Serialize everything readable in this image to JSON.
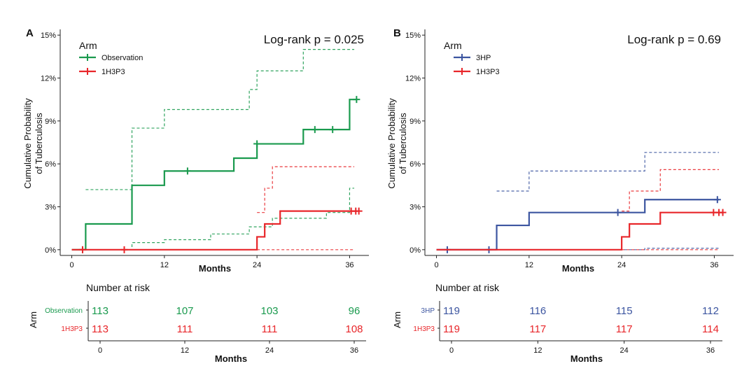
{
  "colors": {
    "observation": "#1a9a4e",
    "treatment": "#e8262a",
    "threehp": "#3c55a0",
    "axis": "#222222",
    "text": "#111111"
  },
  "chart_data": [
    {
      "type": "line",
      "subtype": "step (Kaplan-Meier cumulative incidence)",
      "panel_label": "A",
      "annotation": "Log-rank p = 0.025",
      "xlabel": "Months",
      "ylabel_line1": "Cumulative Probability",
      "ylabel_line2": "of Tuberculosis",
      "xticks": [
        0,
        12,
        24,
        36
      ],
      "xtick_labels": [
        "0",
        "12",
        "24",
        "36"
      ],
      "yticks": [
        0,
        3,
        6,
        9,
        12,
        15
      ],
      "ytick_labels": [
        "0%",
        "3%",
        "6%",
        "9%",
        "12%",
        "15%"
      ],
      "xlim": [
        -1.5,
        38.5
      ],
      "ylim": [
        -0.4,
        15.4
      ],
      "legend_title": "Arm",
      "legend_position": "top-left",
      "series": [
        {
          "name": "Observation",
          "color_key": "observation",
          "steps": [
            [
              0,
              0
            ],
            [
              1.8,
              1.8
            ],
            [
              7.8,
              4.5
            ],
            [
              12,
              5.5
            ],
            [
              21,
              6.4
            ],
            [
              24,
              7.4
            ],
            [
              30,
              8.4
            ],
            [
              36,
              10.5
            ],
            [
              37,
              10.5
            ]
          ],
          "censors": [
            [
              1.4,
              0
            ],
            [
              15,
              5.5
            ],
            [
              24,
              7.4
            ],
            [
              31.5,
              8.4
            ],
            [
              33.8,
              8.4
            ],
            [
              36.9,
              10.5
            ]
          ],
          "ci_lower": [
            [
              1.8,
              0
            ],
            [
              7.8,
              0.5
            ],
            [
              12,
              0.7
            ],
            [
              18,
              1.1
            ],
            [
              23,
              1.6
            ],
            [
              26,
              2.2
            ],
            [
              33,
              2.6
            ],
            [
              36,
              4.3
            ],
            [
              36.6,
              4.3
            ]
          ],
          "ci_upper": [
            [
              1.8,
              4.2
            ],
            [
              7.8,
              8.5
            ],
            [
              12,
              9.8
            ],
            [
              23,
              11.2
            ],
            [
              24,
              12.5
            ],
            [
              30,
              14
            ],
            [
              36.6,
              14
            ]
          ]
        },
        {
          "name": "1H3P3",
          "color_key": "treatment",
          "steps": [
            [
              0,
              0
            ],
            [
              24,
              0.9
            ],
            [
              25,
              1.8
            ],
            [
              27,
              2.7
            ],
            [
              37,
              2.7
            ]
          ],
          "censors": [
            [
              1.4,
              0
            ],
            [
              6.8,
              0
            ],
            [
              36.2,
              2.7
            ],
            [
              36.8,
              2.7
            ],
            [
              37.2,
              2.7
            ]
          ],
          "ci_lower": [
            [
              24,
              0
            ],
            [
              36.6,
              0
            ]
          ],
          "ci_upper": [
            [
              24,
              2.6
            ],
            [
              25,
              4.3
            ],
            [
              26,
              5.8
            ],
            [
              36.6,
              5.8
            ]
          ]
        }
      ],
      "risk_table": {
        "title": "Number at risk",
        "ylabel": "Arm",
        "xlabel": "Months",
        "xtick_labels": [
          "0",
          "12",
          "24",
          "36"
        ],
        "rows": [
          {
            "label": "Observation",
            "color_key": "observation",
            "values": [
              "113",
              "107",
              "103",
              "96"
            ]
          },
          {
            "label": "1H3P3",
            "color_key": "treatment",
            "values": [
              "113",
              "111",
              "111",
              "108"
            ]
          }
        ]
      }
    },
    {
      "type": "line",
      "subtype": "step (Kaplan-Meier cumulative incidence)",
      "panel_label": "B",
      "annotation": "Log-rank p = 0.69",
      "xlabel": "Months",
      "ylabel_line1": "Cumulative Probability",
      "ylabel_line2": "of Tuberculosis",
      "xticks": [
        0,
        12,
        24,
        36
      ],
      "xtick_labels": [
        "0",
        "12",
        "24",
        "36"
      ],
      "yticks": [
        0,
        3,
        6,
        9,
        12,
        15
      ],
      "ytick_labels": [
        "0%",
        "3%",
        "6%",
        "9%",
        "12%",
        "15%"
      ],
      "xlim": [
        -1.5,
        38.5
      ],
      "ylim": [
        -0.4,
        15.4
      ],
      "legend_title": "Arm",
      "legend_position": "top-left",
      "series": [
        {
          "name": "3HP",
          "color_key": "threehp",
          "steps": [
            [
              0,
              0
            ],
            [
              7.8,
              1.7
            ],
            [
              12,
              2.6
            ],
            [
              27,
              3.5
            ],
            [
              36.6,
              3.5
            ]
          ],
          "censors": [
            [
              1.4,
              0
            ],
            [
              6.8,
              0
            ],
            [
              23.5,
              2.6
            ],
            [
              36.4,
              3.5
            ]
          ],
          "ci_lower": [
            [
              7.8,
              0
            ],
            [
              27,
              0.1
            ],
            [
              36.6,
              0.1
            ]
          ],
          "ci_upper": [
            [
              7.8,
              4.1
            ],
            [
              12,
              5.5
            ],
            [
              27,
              6.8
            ],
            [
              36.6,
              6.8
            ]
          ]
        },
        {
          "name": "1H3P3",
          "color_key": "treatment",
          "steps": [
            [
              0,
              0
            ],
            [
              24,
              0.9
            ],
            [
              25,
              1.8
            ],
            [
              29,
              2.6
            ],
            [
              37,
              2.6
            ]
          ],
          "censors": [
            [
              35.9,
              2.6
            ],
            [
              36.6,
              2.6
            ],
            [
              37.1,
              2.6
            ]
          ],
          "ci_lower": [
            [
              24,
              0
            ],
            [
              36.6,
              0
            ]
          ],
          "ci_upper": [
            [
              24,
              2.7
            ],
            [
              25,
              4.1
            ],
            [
              29,
              5.6
            ],
            [
              36.6,
              5.6
            ]
          ]
        }
      ],
      "risk_table": {
        "title": "Number at risk",
        "ylabel": "Arm",
        "xlabel": "Months",
        "xtick_labels": [
          "0",
          "12",
          "24",
          "36"
        ],
        "rows": [
          {
            "label": "3HP",
            "color_key": "threehp",
            "values": [
              "119",
              "116",
              "115",
              "112"
            ]
          },
          {
            "label": "1H3P3",
            "color_key": "treatment",
            "values": [
              "119",
              "117",
              "117",
              "114"
            ]
          }
        ]
      }
    }
  ]
}
